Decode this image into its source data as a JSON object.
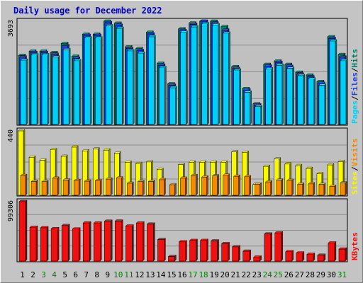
{
  "title": "Daily usage for December 2022",
  "colors": {
    "hits": "#00806a",
    "files": "#1e3ee8",
    "pages": "#00d0f8",
    "visits": "#f58a00",
    "sites": "#f8f800",
    "kbytes": "#f01010",
    "weekend_label": "#008000",
    "weekday_label": "#000000",
    "divider": "#000000"
  },
  "chart_data": [
    {
      "type": "bar",
      "name": "hits-files-pages",
      "categories": [
        "1",
        "2",
        "3",
        "4",
        "5",
        "6",
        "7",
        "8",
        "9",
        "10",
        "11",
        "12",
        "13",
        "14",
        "15",
        "16",
        "17",
        "18",
        "19",
        "20",
        "21",
        "22",
        "23",
        "24",
        "25",
        "26",
        "27",
        "28",
        "29",
        "30",
        "31"
      ],
      "ymax_label": "3693",
      "ylim": [
        0,
        3693
      ],
      "right_label_parts": [
        "Pages",
        "Files",
        "Hits"
      ],
      "series": [
        {
          "name": "Hits",
          "values": [
            2480,
            2630,
            2630,
            2580,
            2900,
            2450,
            3230,
            3230,
            3693,
            3620,
            2780,
            2720,
            3300,
            2200,
            1470,
            3420,
            3630,
            3693,
            3693,
            3500,
            2080,
            1300,
            760,
            2160,
            2280,
            2160,
            1880,
            1780,
            1550,
            3140,
            2510
          ]
        },
        {
          "name": "Files",
          "values": [
            2420,
            2580,
            2580,
            2520,
            2820,
            2380,
            3190,
            3190,
            3640,
            3550,
            2720,
            2650,
            3240,
            2130,
            1420,
            3360,
            3580,
            3693,
            3630,
            3380,
            2020,
            1250,
            720,
            2100,
            2230,
            2090,
            1820,
            1720,
            1490,
            3080,
            2420
          ]
        },
        {
          "name": "Pages",
          "values": [
            2310,
            2500,
            2500,
            2420,
            2680,
            2290,
            3100,
            3100,
            3530,
            3440,
            2640,
            2560,
            3140,
            2040,
            1330,
            3300,
            3490,
            3600,
            3560,
            3270,
            1960,
            1170,
            660,
            2000,
            2130,
            2020,
            1760,
            1640,
            1420,
            2990,
            2290
          ]
        }
      ]
    },
    {
      "type": "bar",
      "name": "sites-visits",
      "categories": [
        "1",
        "2",
        "3",
        "4",
        "5",
        "6",
        "7",
        "8",
        "9",
        "10",
        "11",
        "12",
        "13",
        "14",
        "15",
        "16",
        "17",
        "18",
        "19",
        "20",
        "21",
        "22",
        "23",
        "24",
        "25",
        "26",
        "27",
        "28",
        "29",
        "30",
        "31"
      ],
      "ymax_label": "440",
      "ylim": [
        0,
        440
      ],
      "right_label_parts": [
        "Sites",
        "Visits"
      ],
      "series": [
        {
          "name": "Sites",
          "values": [
            440,
            262,
            242,
            312,
            268,
            330,
            305,
            318,
            310,
            290,
            228,
            218,
            230,
            178,
            0,
            212,
            228,
            228,
            228,
            228,
            298,
            295,
            78,
            200,
            250,
            216,
            205,
            186,
            150,
            210,
            232
          ]
        },
        {
          "name": "Visits",
          "values": [
            138,
            98,
            97,
            120,
            108,
            104,
            100,
            103,
            114,
            122,
            86,
            97,
            98,
            110,
            76,
            120,
            138,
            128,
            136,
            140,
            133,
            130,
            80,
            95,
            107,
            105,
            80,
            82,
            78,
            65,
            88
          ]
        }
      ]
    },
    {
      "type": "bar",
      "name": "kbytes",
      "categories": [
        "1",
        "2",
        "3",
        "4",
        "5",
        "6",
        "7",
        "8",
        "9",
        "10",
        "11",
        "12",
        "13",
        "14",
        "15",
        "16",
        "17",
        "18",
        "19",
        "20",
        "21",
        "22",
        "23",
        "24",
        "25",
        "26",
        "27",
        "28",
        "29",
        "30",
        "31"
      ],
      "ymax_label": "99306",
      "ylim": [
        0,
        99306
      ],
      "right_label_parts": [
        "KBytes"
      ],
      "series": [
        {
          "name": "KBytes",
          "values": [
            99306,
            56880,
            56130,
            54640,
            59750,
            54080,
            64060,
            63960,
            66930,
            67130,
            58940,
            63960,
            62100,
            36640,
            8640,
            32870,
            35130,
            35130,
            34400,
            29900,
            24680,
            17450,
            7620,
            45790,
            47680,
            16590,
            14440,
            12200,
            10730,
            30970,
            20880
          ]
        }
      ]
    }
  ]
}
